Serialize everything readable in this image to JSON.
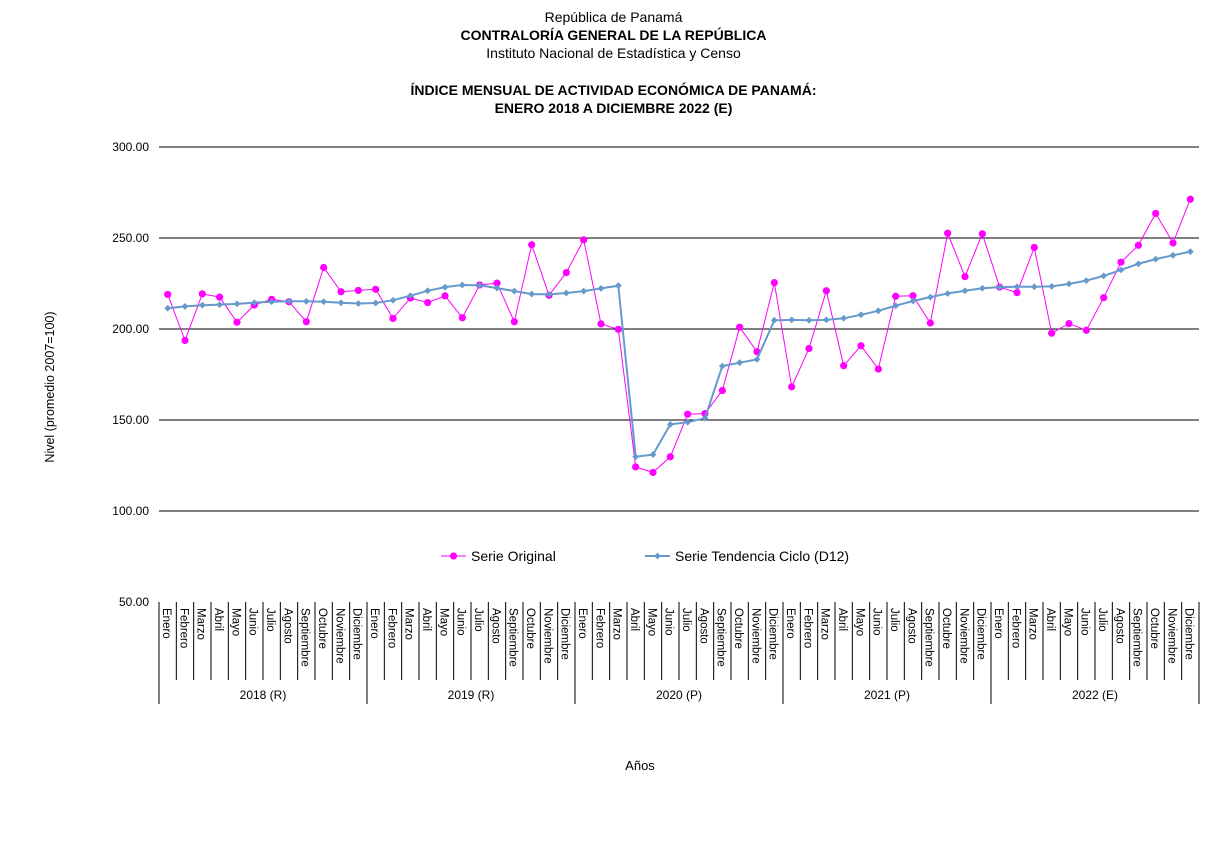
{
  "header": {
    "line1": "República de Panamá",
    "line2": "CONTRALORÍA GENERAL DE LA REPÚBLICA",
    "line3": "Instituto Nacional de Estadística y Censo",
    "title1": "ÍNDICE MENSUAL DE ACTIVIDAD ECONÓMICA DE PANAMÁ:",
    "title2": "ENERO 2018 A DICIEMBRE 2022 (E)"
  },
  "chart_data": {
    "type": "line",
    "title": "ÍNDICE MENSUAL DE ACTIVIDAD ECONÓMICA DE PANAMÁ: ENERO 2018 A DICIEMBRE 2022 (E)",
    "ylabel": "Nivel (promedio 2007=100)",
    "xlabel": "Años",
    "ylim": [
      50,
      300
    ],
    "yticks": [
      "300.00",
      "250.00",
      "200.00",
      "150.00",
      "100.00",
      "50.00"
    ],
    "grid": true,
    "legend_position": "inside-bottom-center",
    "months": [
      "Enero",
      "Febrero",
      "Marzo",
      "Abril",
      "Mayo",
      "Junio",
      "Julio",
      "Agosto",
      "Septiembre",
      "Octubre",
      "Noviembre",
      "Diciembre"
    ],
    "years": [
      "2018 (R)",
      "2019 (R)",
      "2020 (P)",
      "2021 (P)",
      "2022 (E)"
    ],
    "series": [
      {
        "name": "Serie Original",
        "color": "#ff00ff",
        "marker": "circle",
        "values": [
          219.0,
          193.7,
          219.3,
          217.5,
          203.7,
          213.2,
          216.3,
          215.0,
          204.0,
          233.8,
          220.5,
          221.2,
          221.8,
          205.8,
          217.0,
          214.5,
          218.2,
          206.2,
          224.2,
          225.2,
          204.0,
          246.3,
          218.5,
          231.0,
          249.0,
          202.8,
          199.8,
          124.2,
          121.2,
          129.8,
          153.2,
          153.5,
          166.2,
          201.0,
          187.5,
          225.5,
          168.2,
          189.3,
          221.0,
          179.8,
          190.8,
          178.0,
          218.0,
          218.3,
          203.3,
          252.6,
          228.8,
          252.3,
          223.0,
          220.0,
          244.8,
          197.7,
          203.0,
          199.3,
          217.2,
          236.7,
          246.0,
          263.5,
          247.3,
          271.3
        ]
      },
      {
        "name": "Serie Tendencia Ciclo (D12)",
        "color": "#6699cc",
        "marker": "diamond",
        "values": [
          211.4,
          212.4,
          213.1,
          213.4,
          213.8,
          214.5,
          215.0,
          215.3,
          215.2,
          215.0,
          214.4,
          214.0,
          214.3,
          215.8,
          218.3,
          221.0,
          223.0,
          224.2,
          224.0,
          222.5,
          220.8,
          219.2,
          219.0,
          219.8,
          220.8,
          222.3,
          223.8,
          129.8,
          131.0,
          147.6,
          148.8,
          151.0,
          179.6,
          181.5,
          183.3,
          204.8,
          205.0,
          204.8,
          205.0,
          205.9,
          207.8,
          210.0,
          212.8,
          215.4,
          217.5,
          219.5,
          221.0,
          222.4,
          223.0,
          223.2,
          223.2,
          223.4,
          224.8,
          226.6,
          229.2,
          232.5,
          235.8,
          238.4,
          240.5,
          242.5
        ]
      }
    ]
  }
}
